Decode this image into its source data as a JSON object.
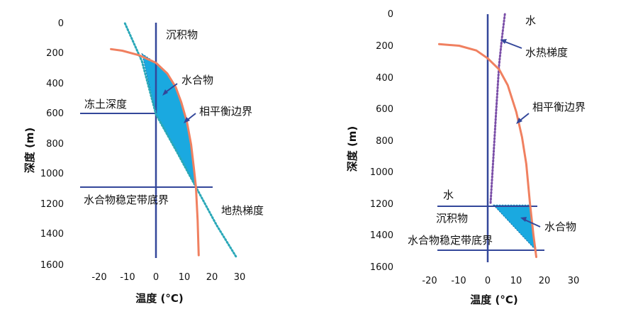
{
  "chart_data": [
    {
      "type": "line",
      "xlabel": "温度 (°C)",
      "ylabel": "深度 (m)",
      "xlim": [
        -30,
        30
      ],
      "ylim": [
        0,
        1600
      ],
      "x_ticks": [
        -20,
        -10,
        0,
        10,
        20,
        30
      ],
      "y_ticks": [
        0,
        200,
        400,
        600,
        800,
        1000,
        1200,
        1400,
        1600
      ],
      "y_inverted": true,
      "series": [
        {
          "id": "phase_boundary",
          "label": "相平衡边界",
          "color": "#f08060",
          "points": [
            [
              -16,
              170
            ],
            [
              -12,
              180
            ],
            [
              -6,
              210
            ],
            [
              0,
              260
            ],
            [
              4,
              330
            ],
            [
              7,
              420
            ],
            [
              9,
              520
            ],
            [
              11,
              650
            ],
            [
              12.5,
              800
            ],
            [
              13.5,
              960
            ],
            [
              14.2,
              1080
            ],
            [
              14.8,
              1300
            ],
            [
              15.2,
              1530
            ]
          ]
        },
        {
          "id": "geothermal_gradient",
          "label": "地热梯度",
          "color": "#2aa8b8",
          "style": "dotted",
          "points": [
            [
              -11,
              0
            ],
            [
              -5,
              250
            ],
            [
              0,
              600
            ],
            [
              7.5,
              850
            ],
            [
              14.2,
              1080
            ],
            [
              21.5,
              1330
            ],
            [
              28.5,
              1540
            ]
          ]
        }
      ],
      "hydrate_zone": {
        "label": "水合物",
        "color": "#1aa9e0",
        "polygon": [
          [
            -5,
            200
          ],
          [
            0,
            260
          ],
          [
            4,
            330
          ],
          [
            7,
            420
          ],
          [
            9,
            520
          ],
          [
            11,
            650
          ],
          [
            12.5,
            800
          ],
          [
            13.5,
            960
          ],
          [
            14.2,
            1080
          ],
          [
            7.5,
            850
          ],
          [
            0,
            600
          ]
        ]
      },
      "reference_lines": [
        {
          "label": "冻土深度",
          "orientation": "h",
          "value": 600,
          "from": -27,
          "to": 0
        },
        {
          "label": "水合物稳定带底界",
          "orientation": "h",
          "value": 1080,
          "from": -27,
          "to": 20
        },
        {
          "label": "沉积物",
          "orientation": "v",
          "value": 0,
          "from": 0,
          "to": 1550
        }
      ]
    },
    {
      "type": "line",
      "xlabel": "温度 (°C)",
      "ylabel": "深度 (m)",
      "xlim": [
        -30,
        30
      ],
      "ylim": [
        0,
        1600
      ],
      "x_ticks": [
        -20,
        -10,
        0,
        10,
        20,
        30
      ],
      "y_ticks": [
        0,
        200,
        400,
        600,
        800,
        1000,
        1200,
        1400,
        1600
      ],
      "y_inverted": true,
      "series": [
        {
          "id": "phase_boundary",
          "label": "相平衡边界",
          "color": "#f08060",
          "points": [
            [
              -17,
              190
            ],
            [
              -10,
              200
            ],
            [
              -4,
              230
            ],
            [
              0,
              280
            ],
            [
              4,
              350
            ],
            [
              7,
              450
            ],
            [
              10,
              620
            ],
            [
              12,
              780
            ],
            [
              13.5,
              950
            ],
            [
              14.8,
              1200
            ],
            [
              16,
              1400
            ],
            [
              17,
              1540
            ]
          ]
        },
        {
          "id": "water_gradient",
          "label": "水热梯度",
          "color": "#7b4fa8",
          "style": "dotted",
          "points": [
            [
              6,
              0
            ],
            [
              5,
              150
            ],
            [
              4,
              320
            ],
            [
              3,
              600
            ],
            [
              2,
              900
            ],
            [
              1,
              1200
            ]
          ]
        }
      ],
      "hydrate_zone": {
        "label": "水合物",
        "color": "#1aa9e0",
        "polygon": [
          [
            2,
            1210
          ],
          [
            15,
            1210
          ],
          [
            16,
            1400
          ],
          [
            17,
            1500
          ]
        ]
      },
      "reference_lines": [
        {
          "label": "水",
          "orientation": "h",
          "value": 1210,
          "from": -17,
          "to": 16
        },
        {
          "label": "水合物稳定带底界",
          "orientation": "h",
          "value": 1500,
          "from": -17,
          "to": 18
        },
        {
          "label": "沉积物",
          "orientation": "v",
          "value": 0,
          "from": 0,
          "to": 1560
        }
      ]
    }
  ]
}
